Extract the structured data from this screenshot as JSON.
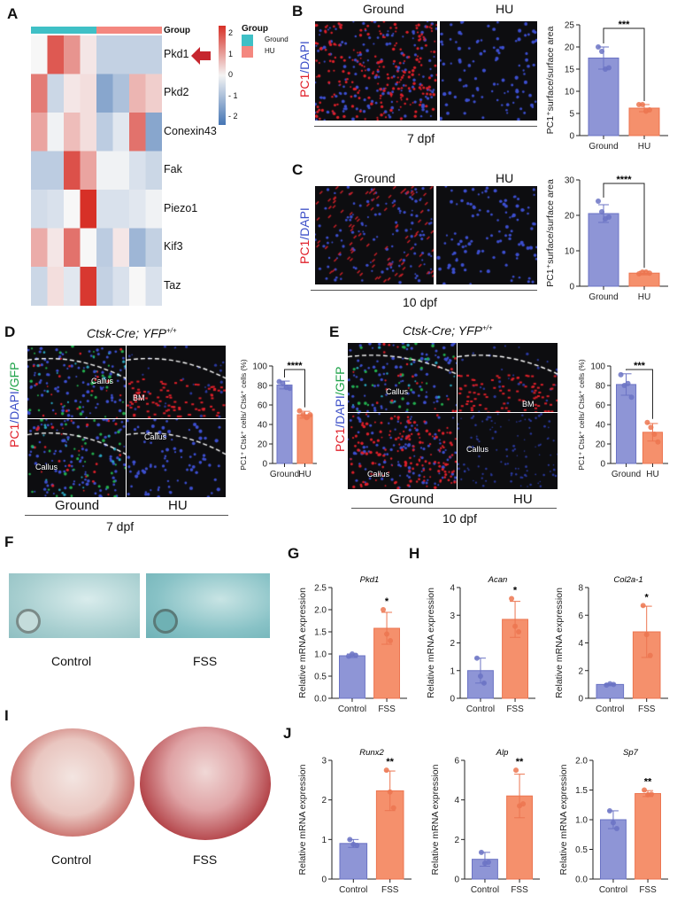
{
  "colors": {
    "ground": "#8e95d6",
    "ground_edge": "#6b73c4",
    "hu": "#f5906c",
    "hu_edge": "#ec7550",
    "group_ground": "#3fc0c6",
    "group_hu": "#f4877f",
    "heat_high": "#d73027",
    "heat_low": "#4575b4",
    "pc1": "#e0202a",
    "dapi": "#3c4fc8",
    "gfp": "#1fa34a"
  },
  "panels": {
    "A": {
      "label": "A",
      "group_track_label": "Group",
      "legend_title": "Group",
      "legend_items": [
        "Ground",
        "HU"
      ],
      "colorbar_ticks": [
        "2",
        "1",
        "0",
        "- 1",
        "- 2"
      ],
      "arrow_icon": "left-arrow"
    },
    "B": {
      "label": "B",
      "col_titles": [
        "Ground",
        "HU"
      ],
      "stain": {
        "a": "PC1",
        "b": "/DAPI"
      },
      "timepoint": "7 dpf"
    },
    "C": {
      "label": "C",
      "col_titles": [
        "Ground",
        "HU"
      ],
      "stain": {
        "a": "PC1",
        "b": "/DAPI"
      },
      "timepoint": "10 dpf"
    },
    "D": {
      "label": "D",
      "genotype": "Ctsk-Cre; YFP",
      "genotype_sup": "+/+",
      "stain": {
        "a": "PC1",
        "b": "/DAPI",
        "c": "/GFP"
      },
      "col_titles": [
        "Ground",
        "HU"
      ],
      "timepoint": "7 dpf",
      "annotations": {
        "callus": "Callus",
        "bm": "BM"
      }
    },
    "E": {
      "label": "E",
      "genotype": "Ctsk-Cre; YFP",
      "genotype_sup": "+/+",
      "stain": {
        "a": "PC1",
        "b": "/DAPI",
        "c": "/GFP"
      },
      "col_titles": [
        "Ground",
        "HU"
      ],
      "timepoint": "10 dpf",
      "annotations": {
        "callus": "Callus",
        "bm": "BM"
      }
    },
    "F": {
      "label": "F",
      "captions": [
        "Control",
        "FSS"
      ]
    },
    "G": {
      "label": "G"
    },
    "H": {
      "label": "H"
    },
    "I": {
      "label": "I",
      "captions": [
        "Control",
        "FSS"
      ]
    },
    "J": {
      "label": "J"
    }
  },
  "chart_data": [
    {
      "type": "heatmap",
      "rows": [
        "Pkd1",
        "Pkd2",
        "Conexin43",
        "Fak",
        "Piezo1",
        "Kif3",
        "Taz"
      ],
      "column_groups": [
        "Ground",
        "Ground",
        "Ground",
        "Ground",
        "HU",
        "HU",
        "HU",
        "HU"
      ],
      "values": [
        [
          0.0,
          1.9,
          1.2,
          0.2,
          -0.7,
          -0.7,
          -0.7,
          -0.7
        ],
        [
          1.5,
          -0.6,
          0.2,
          0.3,
          -1.5,
          -1.0,
          0.8,
          0.5
        ],
        [
          1.0,
          -0.1,
          0.7,
          0.3,
          -0.8,
          -0.3,
          1.6,
          -1.5
        ],
        [
          -0.8,
          -0.8,
          2.0,
          1.0,
          -0.1,
          -0.1,
          -0.4,
          -0.6
        ],
        [
          -0.5,
          -0.4,
          0.0,
          2.4,
          -0.4,
          -0.4,
          -0.3,
          -0.1
        ],
        [
          0.9,
          0.2,
          1.6,
          0.0,
          -0.8,
          0.2,
          -1.2,
          -0.7
        ],
        [
          -0.6,
          0.3,
          -0.3,
          2.3,
          -0.7,
          -0.4,
          0.0,
          -0.4
        ]
      ],
      "scale": [
        -2,
        2
      ]
    },
    {
      "type": "bar",
      "panel": "B",
      "title": "",
      "ylabel": "PC1⁺surface/surface area",
      "categories": [
        "Ground",
        "HU"
      ],
      "values": [
        17.5,
        6.2
      ],
      "sd": [
        2.5,
        0.8
      ],
      "points": [
        [
          20,
          19,
          15,
          15.3
        ],
        [
          7,
          7,
          5.5,
          5.8
        ]
      ],
      "ylim": [
        0,
        25
      ],
      "yticks": [
        "0",
        "5",
        "10",
        "15",
        "20",
        "25"
      ],
      "significance": "***",
      "bracket": true
    },
    {
      "type": "bar",
      "panel": "C",
      "title": "",
      "ylabel": "PC1⁺surface/surface area",
      "categories": [
        "Ground",
        "HU"
      ],
      "values": [
        20.5,
        3.7
      ],
      "sd": [
        2.5,
        0.5
      ],
      "points": [
        [
          24,
          21,
          19,
          19.5
        ],
        [
          3.5,
          4,
          4,
          3.7
        ]
      ],
      "ylim": [
        0,
        30
      ],
      "yticks": [
        "0",
        "10",
        "20",
        "30"
      ],
      "significance": "****",
      "bracket": true
    },
    {
      "type": "bar",
      "panel": "D",
      "title": "",
      "ylabel": "PC1⁺ Ctsk⁺ cells/ Ctsk⁺ cells (%)",
      "categories": [
        "Ground",
        "HU"
      ],
      "values": [
        80.5,
        50
      ],
      "sd": [
        4,
        3.5
      ],
      "points": [
        [
          84,
          82,
          78,
          77
        ],
        [
          54,
          50,
          47,
          50
        ]
      ],
      "ylim": [
        0,
        100
      ],
      "yticks": [
        "0",
        "20",
        "40",
        "60",
        "80",
        "100"
      ],
      "significance": "****",
      "bracket": true
    },
    {
      "type": "bar",
      "panel": "E",
      "title": "",
      "ylabel": "PC1⁺ Ctsk⁺ cells/ Ctsk⁺ cells (%)",
      "categories": [
        "Ground",
        "HU"
      ],
      "values": [
        81,
        32
      ],
      "sd": [
        11,
        9
      ],
      "points": [
        [
          91,
          80,
          82,
          68
        ],
        [
          42,
          37,
          30,
          22
        ]
      ],
      "ylim": [
        0,
        100
      ],
      "yticks": [
        "0",
        "20",
        "40",
        "60",
        "80",
        "100"
      ],
      "significance": "***",
      "bracket": true
    },
    {
      "type": "bar",
      "panel": "G",
      "title": "Pkd1",
      "ylabel": "Relative mRNA expression",
      "categories": [
        "Control",
        "FSS"
      ],
      "values": [
        0.96,
        1.58
      ],
      "sd": [
        0.04,
        0.36
      ],
      "points": [
        [
          0.95,
          1.0,
          0.97
        ],
        [
          2.0,
          1.45,
          1.3
        ]
      ],
      "ylim": [
        0,
        2.5
      ],
      "yticks": [
        "0.0",
        "0.5",
        "1.0",
        "1.5",
        "2.0",
        "2.5"
      ],
      "significance": "*",
      "bracket": false
    },
    {
      "type": "bar",
      "panel": "H",
      "title": "Acan",
      "ylabel": "Relative  mRNA expression",
      "categories": [
        "Control",
        "FSS"
      ],
      "values": [
        1.0,
        2.85
      ],
      "sd": [
        0.45,
        0.65
      ],
      "points": [
        [
          1.45,
          0.8,
          0.55
        ],
        [
          3.6,
          2.6,
          2.4
        ]
      ],
      "ylim": [
        0,
        4
      ],
      "yticks": [
        "0",
        "1",
        "2",
        "3",
        "4"
      ],
      "significance": "*",
      "bracket": false
    },
    {
      "type": "bar",
      "panel": "H",
      "title": "Col2a-1",
      "ylabel": "Relative  mRNA expression",
      "categories": [
        "Control",
        "FSS"
      ],
      "values": [
        1.0,
        4.8
      ],
      "sd": [
        0.05,
        1.85
      ],
      "points": [
        [
          0.95,
          1.05,
          1.0
        ],
        [
          6.7,
          4.6,
          3.1
        ]
      ],
      "ylim": [
        0,
        8
      ],
      "yticks": [
        "0",
        "2",
        "4",
        "6",
        "8"
      ],
      "significance": "*",
      "bracket": false
    },
    {
      "type": "bar",
      "panel": "J",
      "title": "Runx2",
      "ylabel": "Relative mRNA expression",
      "categories": [
        "Control",
        "FSS"
      ],
      "values": [
        0.9,
        2.23
      ],
      "sd": [
        0.1,
        0.5
      ],
      "points": [
        [
          1.0,
          0.88,
          0.85
        ],
        [
          2.75,
          2.2,
          1.8
        ]
      ],
      "ylim": [
        0,
        3
      ],
      "yticks": [
        "0",
        "1",
        "2",
        "3"
      ],
      "significance": "**",
      "bracket": false
    },
    {
      "type": "bar",
      "panel": "J",
      "title": "Alp",
      "ylabel": "Relative  mRNA expression",
      "categories": [
        "Control",
        "FSS"
      ],
      "values": [
        1.0,
        4.2
      ],
      "sd": [
        0.35,
        1.1
      ],
      "points": [
        [
          1.35,
          0.8,
          0.85
        ],
        [
          5.5,
          3.7,
          3.8
        ]
      ],
      "ylim": [
        0,
        6
      ],
      "yticks": [
        "0",
        "2",
        "4",
        "6"
      ],
      "significance": "**",
      "bracket": false
    },
    {
      "type": "bar",
      "panel": "J",
      "title": "Sp7",
      "ylabel": "Relative  mRNA expression",
      "categories": [
        "Control",
        "FSS"
      ],
      "values": [
        1.0,
        1.44
      ],
      "sd": [
        0.15,
        0.05
      ],
      "points": [
        [
          1.15,
          0.95,
          0.85
        ],
        [
          1.5,
          1.42,
          1.43
        ]
      ],
      "ylim": [
        0,
        2
      ],
      "yticks": [
        "0.0",
        "0.5",
        "1.0",
        "1.5",
        "2.0"
      ],
      "significance": "**",
      "bracket": false
    }
  ]
}
